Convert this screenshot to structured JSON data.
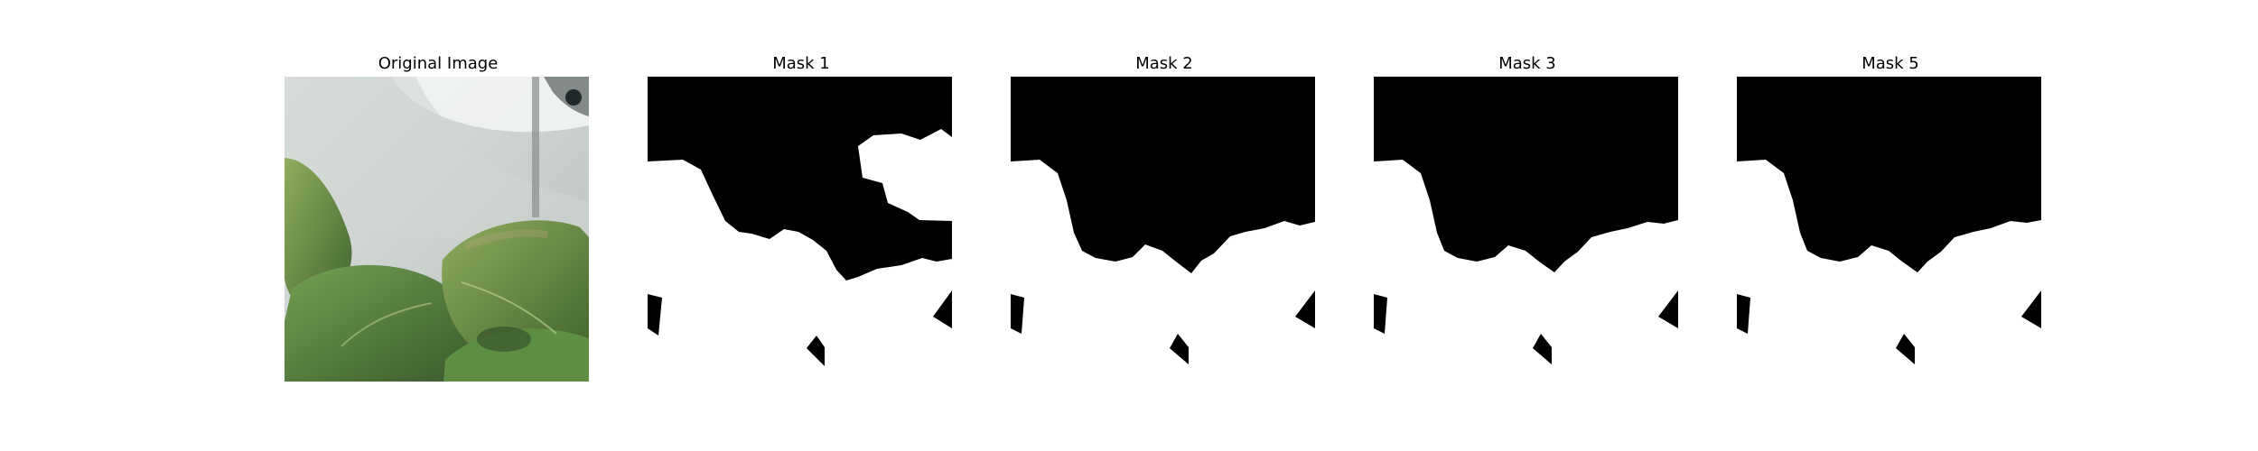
{
  "panels": [
    {
      "title": "Original Image",
      "kind": "photo"
    },
    {
      "title": "Mask 1",
      "kind": "mask"
    },
    {
      "title": "Mask 2",
      "kind": "mask"
    },
    {
      "title": "Mask 3",
      "kind": "mask"
    },
    {
      "title": "Mask 5",
      "kind": "mask"
    }
  ],
  "colors": {
    "background": "#ffffff",
    "mask_on": "#ffffff",
    "mask_off": "#000000",
    "wall": "#d7dcda",
    "leaf_light": "#86a85a",
    "leaf_dark": "#4b6d36",
    "leaf_shadow": "#2c3d20"
  }
}
